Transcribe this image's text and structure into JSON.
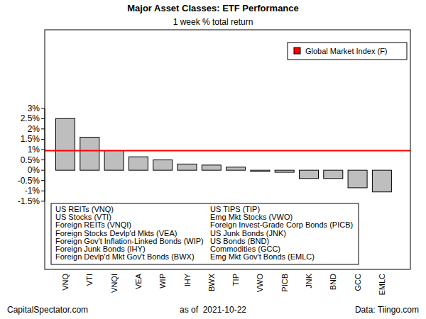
{
  "chart_data": {
    "type": "bar",
    "title": "Major Asset Classes: ETF Performance",
    "subtitle": "1 week % total return",
    "categories": [
      "VNQ",
      "VTI",
      "VNQI",
      "VEA",
      "WIP",
      "IHY",
      "BWX",
      "TIP",
      "VWO",
      "PICB",
      "JNK",
      "BND",
      "GCC",
      "EMLC"
    ],
    "values": [
      2.5,
      1.6,
      0.95,
      0.65,
      0.5,
      0.3,
      0.25,
      0.15,
      -0.05,
      -0.1,
      -0.4,
      -0.4,
      -0.85,
      -1.05
    ],
    "color": "#bebebe",
    "ylim": [
      -4.8,
      6.8
    ],
    "yticks": [
      {
        "value": 3,
        "label": "3%"
      },
      {
        "value": 2.5,
        "label": "2.5%"
      },
      {
        "value": 2,
        "label": "2%"
      },
      {
        "value": 1.5,
        "label": "1.5%"
      },
      {
        "value": 1,
        "label": "1%"
      },
      {
        "value": 0.5,
        "label": "0.5%"
      },
      {
        "value": 0,
        "label": "0%"
      },
      {
        "value": -0.5,
        "label": "-0.5%"
      },
      {
        "value": -1,
        "label": "-1%"
      },
      {
        "value": -1.5,
        "label": "-1.5%"
      }
    ],
    "grid": false,
    "legend": "top-right",
    "reference_line": {
      "name": "Global Market Index (F)",
      "value": 0.95,
      "color": "#ff0000"
    },
    "annotations": {
      "key_box": [
        "US REITs (VNQ)",
        "US Stocks (VTI)",
        "Foreign REITs (VNQI)",
        "Foreign Stocks Devlp'd Mkts (VEA)",
        "Foreign Gov't Inflation-Linked Bonds (WIP)",
        "Foreign Junk Bonds (IHY)",
        "Foreign Devlp'd Mkt Gov't Bonds (BWX)",
        "US TIPS (TIP)",
        "Emg Mkt Stocks (VWO)",
        "Foreign Invest-Grade Corp Bonds (PICB)",
        "US Junk Bonds (JNK)",
        "US Bonds (BND)",
        "Commodities (GCC)",
        "Emg Mkt Gov't Bonds (EMLC)"
      ],
      "source": "CapitalSpectator.com",
      "date": "as of  2021-10-22",
      "data_source": "Data: Tiingo.com"
    }
  }
}
